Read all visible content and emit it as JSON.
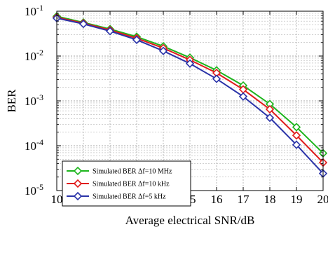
{
  "chart_data": {
    "type": "line",
    "title": "",
    "xlabel": "Average electrical SNR/dB",
    "ylabel": "BER",
    "xlim": [
      10,
      20
    ],
    "ylim": [
      1e-05,
      0.1
    ],
    "yscale": "log",
    "grid": true,
    "legend_position": "bottom-left",
    "x": [
      10,
      11,
      12,
      13,
      14,
      15,
      16,
      17,
      18,
      19,
      20
    ],
    "x_tick_labels": [
      "10",
      "11",
      "12",
      "13",
      "14",
      "15",
      "16",
      "17",
      "18",
      "19",
      "20"
    ],
    "y_ticks": [
      {
        "value": 0.1,
        "base": "10",
        "exp": "-1"
      },
      {
        "value": 0.01,
        "base": "10",
        "exp": "-2"
      },
      {
        "value": 0.001,
        "base": "10",
        "exp": "-3"
      },
      {
        "value": 0.0001,
        "base": "10",
        "exp": "-4"
      },
      {
        "value": 1e-05,
        "base": "10",
        "exp": "-5"
      }
    ],
    "series": [
      {
        "name": "Simulated BER Δf=10 MHz",
        "color": "#1db51d",
        "marker": "diamond",
        "values": [
          0.077,
          0.056,
          0.04,
          0.027,
          0.0165,
          0.0092,
          0.0048,
          0.0022,
          0.00085,
          0.00026,
          6.8e-05
        ]
      },
      {
        "name": "Simulated BER Δf=10 kHz",
        "color": "#e01b1b",
        "marker": "diamond",
        "values": [
          0.073,
          0.054,
          0.038,
          0.025,
          0.015,
          0.0082,
          0.0042,
          0.0018,
          0.00065,
          0.00017,
          4.2e-05
        ]
      },
      {
        "name": "Simulated BER Δf=5 kHz",
        "color": "#2a33a8",
        "marker": "diamond",
        "values": [
          0.07,
          0.052,
          0.036,
          0.023,
          0.013,
          0.0068,
          0.0031,
          0.00125,
          0.00042,
          0.000105,
          2.4e-05
        ]
      }
    ]
  }
}
